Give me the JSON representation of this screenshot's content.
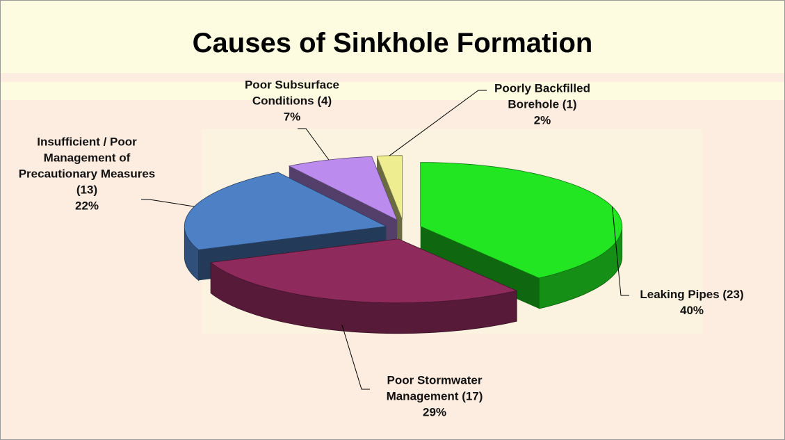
{
  "chart_data": {
    "type": "pie3d",
    "title": "Causes of Sinkhole Formation",
    "categories": [
      "Leaking Pipes (23)",
      "Poor Stormwater Management (17)",
      "Insufficient / Poor Management of Precautionary Measures (13)",
      "Poor Subsurface Conditions (4)",
      "Poorly Backfilled Borehole (1)"
    ],
    "values": [
      40,
      29,
      22,
      7,
      2
    ],
    "value_labels": [
      "40%",
      "29%",
      "22%",
      "7%",
      "2%"
    ],
    "colors": [
      "#22e622",
      "#8e2a5c",
      "#4d80c4",
      "#bb8cee",
      "#eeee90"
    ]
  }
}
